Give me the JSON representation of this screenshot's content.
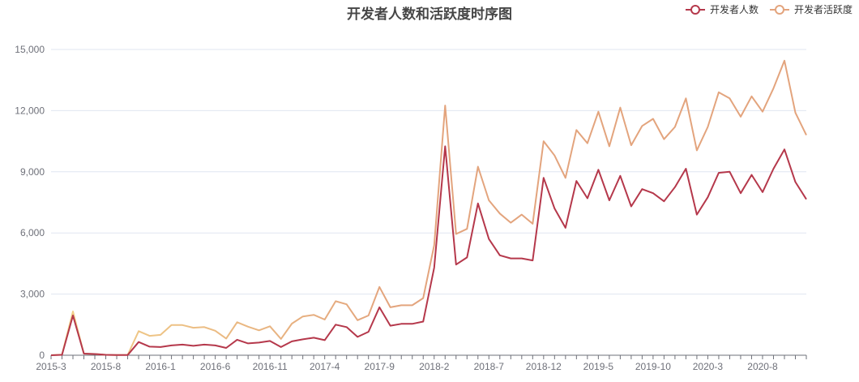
{
  "chart_data": {
    "type": "line",
    "title": "开发者人数和活跃度时序图",
    "xlabel": "",
    "ylabel": "",
    "ylim": [
      0,
      15000
    ],
    "yticks": [
      "0",
      "3,000",
      "6,000",
      "9,000",
      "12,000",
      "15,000"
    ],
    "grid": "horizontal",
    "legend_position": "top-right",
    "x": [
      "2015-3",
      "2015-4",
      "2015-5",
      "2015-6",
      "2015-7",
      "2015-8",
      "2015-9",
      "2015-10",
      "2015-11",
      "2015-12",
      "2016-1",
      "2016-2",
      "2016-3",
      "2016-4",
      "2016-5",
      "2016-6",
      "2016-7",
      "2016-8",
      "2016-9",
      "2016-10",
      "2016-11",
      "2016-12",
      "2017-1",
      "2017-2",
      "2017-3",
      "2017-4",
      "2017-5",
      "2017-6",
      "2017-7",
      "2017-8",
      "2017-9",
      "2017-10",
      "2017-11",
      "2017-12",
      "2018-1",
      "2018-2",
      "2018-3",
      "2018-4",
      "2018-5",
      "2018-6",
      "2018-7",
      "2018-8",
      "2018-9",
      "2018-10",
      "2018-11",
      "2018-12",
      "2019-1",
      "2019-2",
      "2019-3",
      "2019-4",
      "2019-5",
      "2019-6",
      "2019-7",
      "2019-8",
      "2019-9",
      "2019-10",
      "2019-11",
      "2019-12",
      "2020-1",
      "2020-2",
      "2020-3",
      "2020-4",
      "2020-5",
      "2020-6",
      "2020-7",
      "2020-8",
      "2020-9",
      "2020-10",
      "2020-11",
      "2020-12"
    ],
    "xtick_labels": [
      "2015-3",
      "2015-8",
      "2016-1",
      "2016-6",
      "2016-11",
      "2017-4",
      "2017-9",
      "2018-2",
      "2018-7",
      "2018-12",
      "2019-5",
      "2019-10",
      "2020-3",
      "2020-8"
    ],
    "series": [
      {
        "name": "开发者人数",
        "color": "#b5384b",
        "values": [
          0,
          20,
          1950,
          80,
          60,
          20,
          10,
          10,
          650,
          420,
          400,
          480,
          520,
          460,
          520,
          480,
          360,
          760,
          580,
          620,
          700,
          400,
          680,
          780,
          860,
          740,
          1500,
          1380,
          900,
          1150,
          2350,
          1450,
          1540,
          1540,
          1650,
          4300,
          10250,
          4450,
          4800,
          7450,
          5700,
          4900,
          4750,
          4750,
          4650,
          8700,
          7200,
          6250,
          8550,
          7700,
          9100,
          7600,
          8800,
          7300,
          8150,
          7950,
          7550,
          8250,
          9150,
          6900,
          7750,
          8950,
          9000,
          7950,
          8850,
          8000,
          9150,
          10100,
          8500,
          7650
        ]
      },
      {
        "name": "开发者活跃度",
        "color": "#e3a47d",
        "gradient": [
          "#f5d98b",
          "#e3a47d"
        ],
        "values": [
          0,
          30,
          2150,
          80,
          60,
          20,
          10,
          20,
          1180,
          950,
          1000,
          1480,
          1480,
          1350,
          1380,
          1200,
          820,
          1620,
          1400,
          1220,
          1420,
          800,
          1550,
          1900,
          1980,
          1750,
          2650,
          2500,
          1720,
          1950,
          3350,
          2350,
          2450,
          2450,
          2800,
          5400,
          12250,
          5950,
          6200,
          9250,
          7600,
          6950,
          6500,
          6900,
          6450,
          10500,
          9800,
          8700,
          11050,
          10400,
          11950,
          10250,
          12150,
          10300,
          11250,
          11600,
          10600,
          11200,
          12600,
          10050,
          11200,
          12900,
          12600,
          11700,
          12700,
          11950,
          13100,
          14450,
          11900,
          10800
        ]
      }
    ]
  }
}
